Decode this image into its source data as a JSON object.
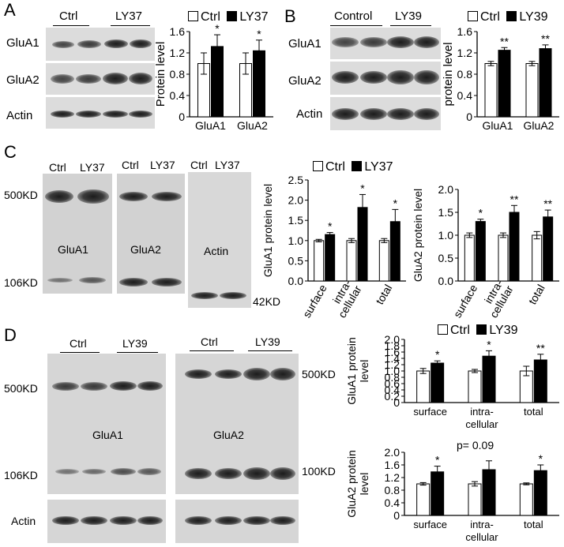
{
  "panels": {
    "A": {
      "letter": "A",
      "groups": [
        "Ctrl",
        "LY37"
      ],
      "rows": [
        "GluA1",
        "GluA2",
        "Actin"
      ],
      "legend": [
        "Ctrl",
        "LY37"
      ]
    },
    "B": {
      "letter": "B",
      "groups": [
        "Control",
        "LY39"
      ],
      "rows": [
        "GluA1",
        "GluA2",
        "Actin"
      ],
      "legend": [
        "Ctrl",
        "LY39"
      ]
    },
    "C": {
      "letter": "C",
      "blot1": {
        "cols": [
          "Ctrl",
          "LY37"
        ],
        "label": "GluA1"
      },
      "blot2": {
        "cols": [
          "Ctrl",
          "LY37"
        ],
        "label": "GluA2"
      },
      "blot3": {
        "cols": [
          "Ctrl",
          "LY37"
        ],
        "label": "Actin"
      },
      "mw_500": "500KD",
      "mw_106": "106KD",
      "mw_42": "42KD",
      "legend": [
        "Ctrl",
        "LY37"
      ]
    },
    "D": {
      "letter": "D",
      "groups": [
        "Ctrl",
        "LY39"
      ],
      "left_label": "GluA1",
      "right_label": "GluA2",
      "mw_500_left": "500KD",
      "mw_106_left": "106KD",
      "mw_500_right": "500KD",
      "mw_100_right": "100KD",
      "actin": "Actin",
      "legend": [
        "Ctrl",
        "LY39"
      ],
      "pvalue": "p= 0.09"
    }
  },
  "colors": {
    "ctrl_bar": "#ffffff",
    "treat_bar": "#000000",
    "blot_bg": "#dcdcdc"
  },
  "chart_data": [
    {
      "id": "A",
      "type": "bar",
      "categories": [
        "GluA1",
        "GluA2"
      ],
      "series": [
        {
          "name": "Ctrl",
          "values": [
            1.0,
            1.0
          ],
          "err": [
            0.2,
            0.2
          ]
        },
        {
          "name": "LY37",
          "values": [
            1.32,
            1.24
          ],
          "err": [
            0.22,
            0.2
          ]
        }
      ],
      "sig": [
        "*",
        "*"
      ],
      "ylabel": "Protein level",
      "ylim": [
        0,
        1.6
      ],
      "yticks": [
        "0",
        "0.4",
        "0.8",
        "1.2",
        "1.6"
      ]
    },
    {
      "id": "B",
      "type": "bar",
      "categories": [
        "GluA1",
        "GluA2"
      ],
      "series": [
        {
          "name": "Ctrl",
          "values": [
            1.0,
            1.0
          ],
          "err": [
            0.04,
            0.04
          ]
        },
        {
          "name": "LY39",
          "values": [
            1.25,
            1.28
          ],
          "err": [
            0.05,
            0.07
          ]
        }
      ],
      "sig": [
        "**",
        "**"
      ],
      "ylabel": "protein level",
      "ylim": [
        0,
        1.6
      ],
      "yticks": [
        "0",
        "0.4",
        "0.8",
        "1.2",
        "1.6"
      ]
    },
    {
      "id": "C1",
      "type": "bar",
      "categories": [
        "surface",
        "intra-\ncellular",
        "total"
      ],
      "series": [
        {
          "name": "Ctrl",
          "values": [
            1.0,
            1.0,
            1.0
          ],
          "err": [
            0.03,
            0.05,
            0.05
          ]
        },
        {
          "name": "LY37",
          "values": [
            1.15,
            1.82,
            1.47
          ],
          "err": [
            0.05,
            0.32,
            0.3
          ]
        }
      ],
      "sig": [
        "*",
        "*",
        "*"
      ],
      "ylabel": "GluA1 protein level",
      "ylim": [
        0,
        2.5
      ],
      "yticks": [
        "0.0",
        "0.5",
        "1.0",
        "1.5",
        "2.0",
        "2.5"
      ]
    },
    {
      "id": "C2",
      "type": "bar",
      "categories": [
        "surface",
        "intra-\ncellular",
        "total"
      ],
      "series": [
        {
          "name": "Ctrl",
          "values": [
            1.0,
            1.0,
            1.0
          ],
          "err": [
            0.05,
            0.05,
            0.08
          ]
        },
        {
          "name": "LY37",
          "values": [
            1.3,
            1.5,
            1.4
          ],
          "err": [
            0.05,
            0.15,
            0.15
          ]
        }
      ],
      "sig": [
        "*",
        "**",
        "**"
      ],
      "ylabel": "GluA2 protein level",
      "ylim": [
        0,
        2.0
      ],
      "yticks": [
        "0.0",
        "0.5",
        "1.0",
        "1.5",
        "2.0"
      ]
    },
    {
      "id": "D1",
      "type": "bar",
      "categories": [
        "surface",
        "intra-\ncellular",
        "total"
      ],
      "series": [
        {
          "name": "Ctrl",
          "values": [
            1.0,
            1.0,
            1.0
          ],
          "err": [
            0.08,
            0.05,
            0.15
          ]
        },
        {
          "name": "LY39",
          "values": [
            1.25,
            1.47,
            1.35
          ],
          "err": [
            0.07,
            0.17,
            0.18
          ]
        }
      ],
      "sig": [
        "*",
        "*",
        "**"
      ],
      "ylabel": "GluA1 protein level",
      "ylim": [
        0,
        2.0
      ],
      "yticks": [
        "0",
        "0.2",
        "0.4",
        "0.6",
        "0.8",
        "1.0",
        "1.2",
        "1.4",
        "1.6",
        "1.8",
        "2.0"
      ]
    },
    {
      "id": "D2",
      "type": "bar",
      "categories": [
        "surface",
        "intra-\ncellular",
        "total"
      ],
      "series": [
        {
          "name": "Ctrl",
          "values": [
            1.0,
            1.0,
            1.0
          ],
          "err": [
            0.04,
            0.07,
            0.03
          ]
        },
        {
          "name": "LY39",
          "values": [
            1.38,
            1.45,
            1.42
          ],
          "err": [
            0.18,
            0.28,
            0.18
          ]
        }
      ],
      "sig": [
        "*",
        "",
        "*"
      ],
      "ylabel": "GluA2 protein level",
      "ylim": [
        0,
        2.0
      ],
      "yticks": [
        "0",
        "0.4",
        "0.8",
        "1.2",
        "1.6",
        "2.0"
      ]
    }
  ]
}
